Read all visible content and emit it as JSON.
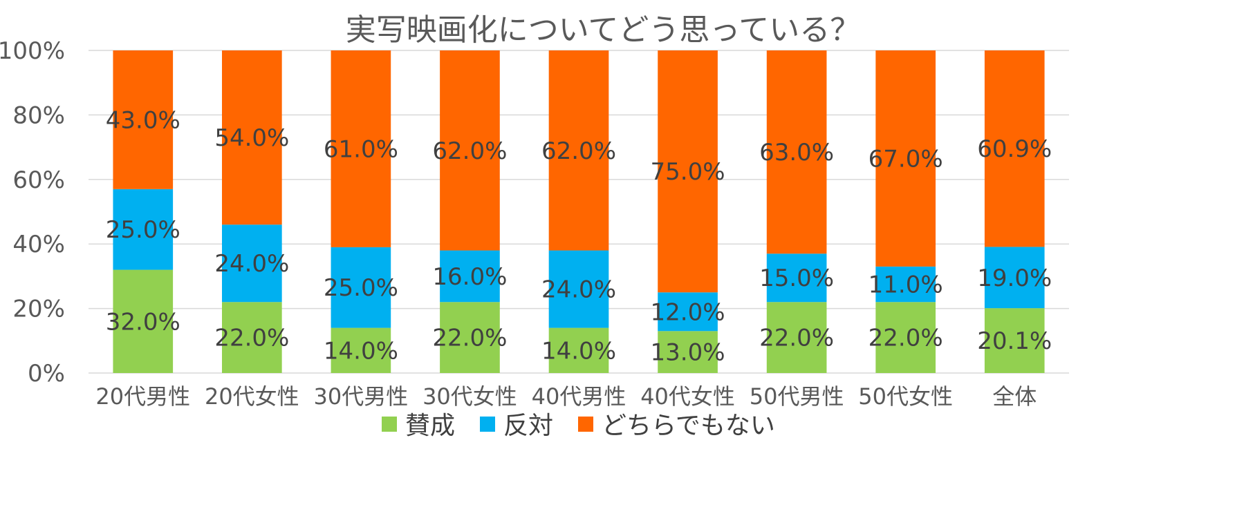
{
  "chart_data": {
    "type": "bar",
    "stacked": true,
    "title": "実写映画化についてどう思っている？",
    "categories": [
      "20代男性",
      "20代女性",
      "30代男性",
      "30代女性",
      "40代男性",
      "40代女性",
      "50代男性",
      "50代女性",
      "全体"
    ],
    "series": [
      {
        "name": "賛成",
        "color": "#92D050",
        "values": [
          32.0,
          22.0,
          14.0,
          22.0,
          14.0,
          13.0,
          22.0,
          22.0,
          20.1
        ]
      },
      {
        "name": "反対",
        "color": "#00B0F0",
        "values": [
          25.0,
          24.0,
          25.0,
          16.0,
          24.0,
          12.0,
          15.0,
          11.0,
          19.0
        ]
      },
      {
        "name": "どちらでもない",
        "color": "#FF6600",
        "values": [
          43.0,
          54.0,
          61.0,
          62.0,
          62.0,
          75.0,
          63.0,
          67.0,
          60.9
        ]
      }
    ],
    "ylim": [
      0,
      100
    ],
    "yticks": [
      "0%",
      "20%",
      "40%",
      "60%",
      "80%",
      "100%"
    ],
    "grid": true,
    "legend": "bottom"
  }
}
